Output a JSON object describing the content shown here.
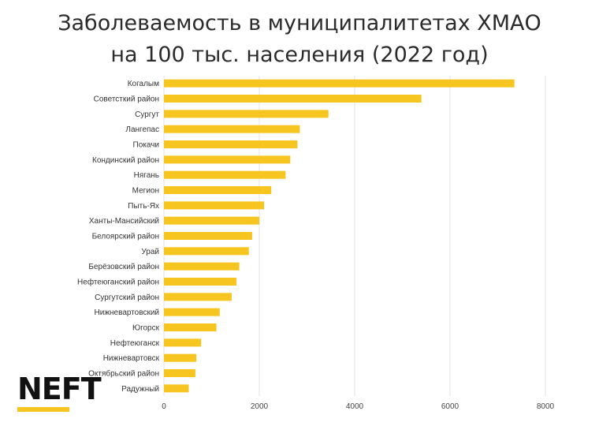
{
  "title_line1": "Заболеваемость в муниципалитетах ХМАО",
  "title_line2": "на 100 тыс. населения (2022 год)",
  "logo_text": "NEFT",
  "colors": {
    "bar": "#f7c520",
    "grid": "#e3e3e3",
    "text": "#333333",
    "logo_accent": "#f7c520"
  },
  "chart_data": {
    "type": "bar",
    "orientation": "horizontal",
    "title": "Заболеваемость в муниципалитетах ХМАО на 100 тыс. населения (2022 год)",
    "categories": [
      "Когалым",
      "Советсткий район",
      "Сургут",
      "Лангепас",
      "Покачи",
      "Кондинский район",
      "Нягань",
      "Мегион",
      "Пыть-Ях",
      "Ханты-Мансийский",
      "Белоярский район",
      "Урай",
      "Берёзовский район",
      "Нефтеюганский район",
      "Сургутский район",
      "Нижневартовский",
      "Югорск",
      "Нефтеюганск",
      "Нижневартовск",
      "Октябрьский район",
      "Радужный"
    ],
    "values": [
      7350,
      5400,
      3450,
      2850,
      2800,
      2650,
      2550,
      2250,
      2100,
      2000,
      1850,
      1780,
      1580,
      1520,
      1420,
      1170,
      1100,
      780,
      680,
      660,
      520
    ],
    "xlim": [
      0,
      8000
    ],
    "xticks": [
      "0",
      "2000",
      "4000",
      "6000",
      "8000"
    ],
    "xlabel": "",
    "ylabel": "",
    "grid": true,
    "legend": "none"
  }
}
